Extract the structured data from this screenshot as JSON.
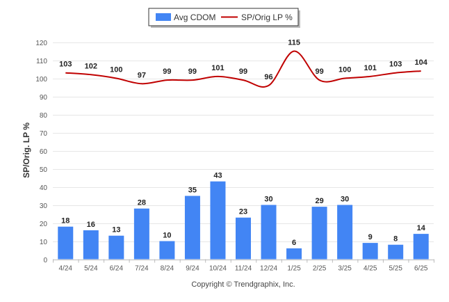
{
  "chart_data": {
    "type": "bar",
    "categories": [
      "4/24",
      "5/24",
      "6/24",
      "7/24",
      "8/24",
      "9/24",
      "10/24",
      "11/24",
      "12/24",
      "1/25",
      "2/25",
      "3/25",
      "4/25",
      "5/25",
      "6/25"
    ],
    "series": [
      {
        "name": "Avg CDOM",
        "type": "bar",
        "color": "#4285f4",
        "values": [
          18,
          16,
          13,
          28,
          10,
          35,
          43,
          23,
          30,
          6,
          29,
          30,
          9,
          8,
          14
        ]
      },
      {
        "name": "SP/Orig LP %",
        "type": "line",
        "color": "#c00000",
        "values": [
          103,
          102,
          100,
          97,
          99,
          99,
          101,
          99,
          96,
          115,
          99,
          100,
          101,
          103,
          104
        ]
      }
    ],
    "ylabel": "SP/Orig. LP %",
    "ylim": [
      0,
      120
    ],
    "yticks": [
      "0",
      "10",
      "20",
      "30",
      "40",
      "50",
      "60",
      "70",
      "80",
      "90",
      "100",
      "110",
      "120"
    ],
    "grid": true,
    "legend_position": "top-center",
    "footer": "Copyright © Trendgraphix, Inc."
  }
}
